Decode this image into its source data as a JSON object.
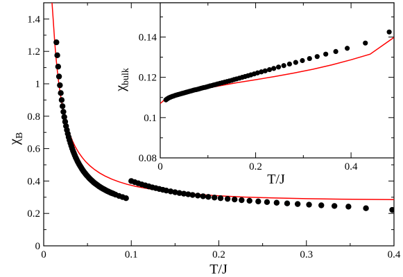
{
  "chart_data": [
    {
      "id": "main",
      "type": "scatter",
      "xlabel": "T/J",
      "ylabel": "χ",
      "ylabel_sub": "B",
      "xlim": [
        0,
        0.4
      ],
      "ylim": [
        0,
        1.5
      ],
      "xticks": [
        0,
        0.1,
        0.2,
        0.3,
        0.4
      ],
      "xtick_labels": [
        "0",
        "0.1",
        "0.2",
        "0.3",
        "0.4"
      ],
      "yticks": [
        0,
        0.2,
        0.4,
        0.6,
        0.8,
        1.0,
        1.2,
        1.4
      ],
      "ytick_labels": [
        "0",
        "0.2",
        "0.4",
        "0.6",
        "0.8",
        "1",
        "1.2",
        "1.4"
      ],
      "series": [
        {
          "kind": "points",
          "color": "#000000",
          "x": [
            0.0145,
            0.0155,
            0.0165,
            0.0175,
            0.0185,
            0.0195,
            0.0205,
            0.0215,
            0.0225,
            0.0235,
            0.0245,
            0.0255,
            0.0265,
            0.0275,
            0.0285,
            0.0295,
            0.0305,
            0.0315,
            0.0325,
            0.0335,
            0.0345,
            0.0355,
            0.0365,
            0.0375,
            0.0385,
            0.0395,
            0.0405,
            0.0415,
            0.0425,
            0.0435,
            0.0445,
            0.0455,
            0.0465,
            0.0475,
            0.0485,
            0.0495,
            0.0505,
            0.0515,
            0.0525,
            0.0535,
            0.0545,
            0.0555,
            0.0565,
            0.0575,
            0.0585,
            0.0595,
            0.0605,
            0.0615,
            0.0625,
            0.0635,
            0.0645,
            0.0655,
            0.0665,
            0.0675,
            0.0685,
            0.0695,
            0.0705,
            0.0715,
            0.0725,
            0.0735,
            0.0745,
            0.0755,
            0.0765,
            0.0775,
            0.0785,
            0.0795,
            0.082,
            0.086,
            0.09,
            0.094,
            0.1,
            0.104,
            0.108,
            0.112,
            0.116,
            0.12,
            0.124,
            0.128,
            0.132,
            0.136,
            0.14,
            0.145,
            0.15,
            0.155,
            0.16,
            0.165,
            0.17,
            0.176,
            0.182,
            0.188,
            0.195,
            0.202,
            0.21,
            0.218,
            0.226,
            0.235,
            0.245,
            0.255,
            0.266,
            0.278,
            0.29,
            0.303,
            0.317,
            0.332,
            0.348,
            0.368,
            0.398
          ],
          "y": [
            1.256,
            1.176,
            1.106,
            1.045,
            0.991,
            0.943,
            0.9,
            0.862,
            0.827,
            0.795,
            0.766,
            0.739,
            0.715,
            0.692,
            0.671,
            0.652,
            0.634,
            0.617,
            0.601,
            0.586,
            0.572,
            0.559,
            0.546,
            0.535,
            0.523,
            0.513,
            0.503,
            0.494,
            0.485,
            0.476,
            0.468,
            0.46,
            0.453,
            0.446,
            0.439,
            0.433,
            0.427,
            0.421,
            0.415,
            0.41,
            0.405,
            0.4,
            0.395,
            0.39,
            0.386,
            0.382,
            0.378,
            0.374,
            0.37,
            0.366,
            0.363,
            0.359,
            0.356,
            0.353,
            0.35,
            0.347,
            0.344,
            0.341,
            0.338,
            0.336,
            0.333,
            0.331,
            0.328,
            0.326,
            0.324,
            0.322,
            0.316,
            0.308,
            0.301,
            0.294,
            0.4,
            0.393,
            0.386,
            0.379,
            0.373,
            0.367,
            0.361,
            0.356,
            0.351,
            0.346,
            0.341,
            0.336,
            0.331,
            0.326,
            0.322,
            0.318,
            0.314,
            0.31,
            0.306,
            0.302,
            0.298,
            0.294,
            0.29,
            0.286,
            0.282,
            0.278,
            0.274,
            0.27,
            0.266,
            0.262,
            0.258,
            0.254,
            0.25,
            0.246,
            0.242,
            0.232,
            0.222
          ]
        },
        {
          "kind": "curve",
          "color": "#ff0000",
          "x": [
            0.0095,
            0.011,
            0.0125,
            0.014,
            0.0155,
            0.017,
            0.0185,
            0.02,
            0.022,
            0.024,
            0.026,
            0.028,
            0.03,
            0.033,
            0.036,
            0.04,
            0.044,
            0.048,
            0.053,
            0.058,
            0.064,
            0.07,
            0.078,
            0.086,
            0.095,
            0.105,
            0.12,
            0.14,
            0.16,
            0.18,
            0.2,
            0.23,
            0.26,
            0.3,
            0.34,
            0.4
          ],
          "y": [
            1.5,
            1.385,
            1.263,
            1.165,
            1.083,
            1.013,
            0.954,
            0.903,
            0.845,
            0.796,
            0.754,
            0.718,
            0.686,
            0.646,
            0.612,
            0.575,
            0.545,
            0.519,
            0.493,
            0.471,
            0.449,
            0.431,
            0.411,
            0.395,
            0.38,
            0.367,
            0.352,
            0.337,
            0.325,
            0.316,
            0.309,
            0.301,
            0.296,
            0.291,
            0.288,
            0.285
          ]
        }
      ]
    },
    {
      "id": "inset",
      "type": "scatter",
      "xlabel": "T/J",
      "ylabel": "χ",
      "ylabel_sub": "bulk",
      "xlim": [
        0,
        0.49
      ],
      "ylim": [
        0.08,
        0.157
      ],
      "xticks": [
        0,
        0.2,
        0.4
      ],
      "xtick_labels": [
        "0",
        "0.2",
        "0.4"
      ],
      "yticks": [
        0.08,
        0.1,
        0.12,
        0.14
      ],
      "ytick_labels": [
        "0.08",
        "0.1",
        "0.12",
        "0.14"
      ],
      "series": [
        {
          "kind": "points",
          "color": "#000000",
          "x": [
            0.012,
            0.014,
            0.016,
            0.018,
            0.02,
            0.022,
            0.025,
            0.028,
            0.031,
            0.034,
            0.037,
            0.04,
            0.043,
            0.046,
            0.049,
            0.052,
            0.055,
            0.058,
            0.061,
            0.064,
            0.067,
            0.07,
            0.073,
            0.076,
            0.079,
            0.082,
            0.085,
            0.088,
            0.091,
            0.094,
            0.097,
            0.1,
            0.104,
            0.108,
            0.112,
            0.116,
            0.12,
            0.125,
            0.13,
            0.135,
            0.14,
            0.145,
            0.15,
            0.155,
            0.16,
            0.166,
            0.172,
            0.178,
            0.184,
            0.19,
            0.197,
            0.204,
            0.212,
            0.22,
            0.229,
            0.238,
            0.248,
            0.259,
            0.271,
            0.284,
            0.298,
            0.313,
            0.329,
            0.347,
            0.368,
            0.392,
            0.43,
            0.48
          ],
          "y": [
            0.1088,
            0.1092,
            0.1095,
            0.1098,
            0.11,
            0.1102,
            0.1105,
            0.1107,
            0.111,
            0.1112,
            0.1114,
            0.1116,
            0.1118,
            0.112,
            0.1122,
            0.1124,
            0.1126,
            0.1128,
            0.113,
            0.1132,
            0.1134,
            0.1136,
            0.1138,
            0.1139,
            0.1141,
            0.1143,
            0.1145,
            0.1147,
            0.1149,
            0.115,
            0.1152,
            0.1154,
            0.1157,
            0.1159,
            0.1162,
            0.1164,
            0.1167,
            0.117,
            0.1173,
            0.1176,
            0.1179,
            0.1182,
            0.1185,
            0.1189,
            0.1192,
            0.1196,
            0.12,
            0.1204,
            0.1208,
            0.1212,
            0.1217,
            0.1222,
            0.1227,
            0.1232,
            0.1238,
            0.1244,
            0.1251,
            0.1258,
            0.1266,
            0.1274,
            0.1283,
            0.1293,
            0.1303,
            0.1315,
            0.1328,
            0.1344,
            0.137,
            0.1425
          ]
        },
        {
          "kind": "curve",
          "color": "#ff0000",
          "x": [
            0,
            0.005,
            0.01,
            0.02,
            0.03,
            0.05,
            0.07,
            0.1,
            0.13,
            0.16,
            0.2,
            0.24,
            0.28,
            0.32,
            0.36,
            0.4,
            0.44,
            0.49
          ],
          "y": [
            0.107,
            0.108,
            0.1092,
            0.1105,
            0.1113,
            0.1124,
            0.1134,
            0.1147,
            0.116,
            0.1173,
            0.1188,
            0.1204,
            0.1221,
            0.124,
            0.1262,
            0.1287,
            0.1315,
            0.1398
          ]
        }
      ]
    }
  ]
}
